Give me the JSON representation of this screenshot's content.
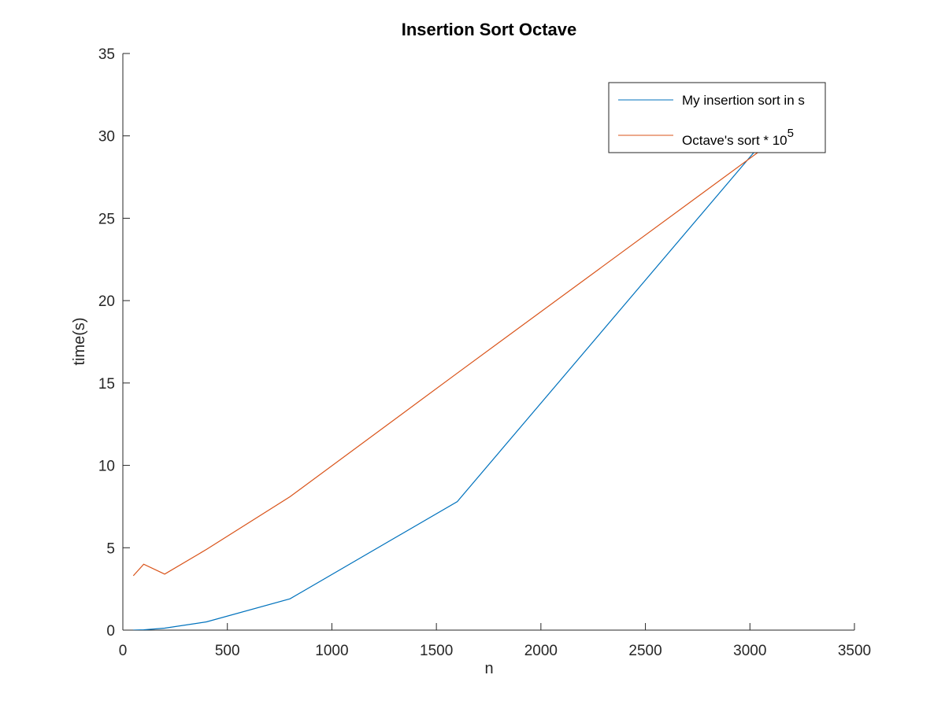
{
  "chart_data": {
    "type": "line",
    "title": "Insertion Sort Octave",
    "xlabel": "n",
    "ylabel": "time(s)",
    "xlim": [
      0,
      3500
    ],
    "ylim": [
      0,
      35
    ],
    "xticks": [
      0,
      500,
      1000,
      1500,
      2000,
      2500,
      3000,
      3500
    ],
    "yticks": [
      0,
      5,
      10,
      15,
      20,
      25,
      30,
      35
    ],
    "xtick_labels": [
      "0",
      "500",
      "1000",
      "1500",
      "2000",
      "2500",
      "3000",
      "3500"
    ],
    "ytick_labels": [
      "0",
      "5",
      "10",
      "15",
      "20",
      "25",
      "30",
      "35"
    ],
    "grid": false,
    "legend_position": "top-right",
    "series": [
      {
        "name": "My insertion sort in s",
        "color": "#0072BD",
        "x": [
          50,
          100,
          200,
          400,
          800,
          1600,
          3200
        ],
        "y": [
          0.0,
          0.02,
          0.12,
          0.5,
          1.9,
          7.8,
          31.7
        ]
      },
      {
        "name_main": "Octave's sort * 10",
        "name_sup": "5",
        "color": "#D95319",
        "x": [
          50,
          100,
          200,
          400,
          800,
          1600,
          3200
        ],
        "y": [
          3.3,
          4.0,
          3.4,
          4.9,
          8.1,
          15.6,
          30.5
        ]
      }
    ]
  }
}
